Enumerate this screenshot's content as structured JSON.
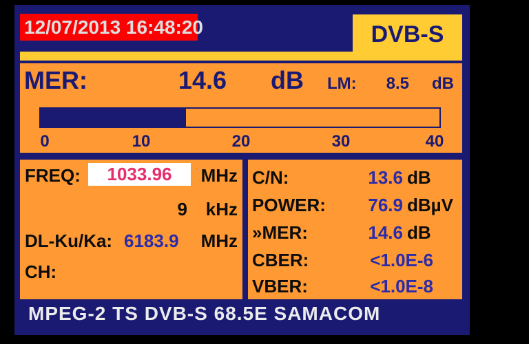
{
  "header": {
    "datetime": "12/07/2013 16:48:20",
    "mode": "DVB-S"
  },
  "mer_panel": {
    "label": "MER:",
    "value": "14.6",
    "unit": "dB",
    "lm_label": "LM:",
    "lm_value": "8.5",
    "lm_unit": "dB",
    "bar": {
      "min": 0,
      "max": 40,
      "value": 14.6,
      "ticks": [
        "0",
        "10",
        "20",
        "30",
        "40"
      ]
    }
  },
  "tuning_panel": {
    "freq_label": "FREQ:",
    "freq_value": "1033.96",
    "freq_unit": "MHz",
    "step_value": "9",
    "step_unit": "kHz",
    "dl_label": "DL-Ku/Ka:",
    "dl_value": "6183.9",
    "dl_unit": "MHz",
    "ch_label": "CH:"
  },
  "measurements": {
    "rows": [
      {
        "label": "C/N:",
        "value": "13.6",
        "unit": "dB"
      },
      {
        "label": "POWER:",
        "value": "76.9",
        "unit": "dBµV"
      },
      {
        "label": "»MER:",
        "value": "14.6",
        "unit": "dB"
      },
      {
        "label": "CBER:",
        "value": "<1.0E-6",
        "unit": ""
      },
      {
        "label": "VBER:",
        "value": "<1.0E-8",
        "unit": ""
      }
    ]
  },
  "footer": {
    "text": "MPEG-2 TS DVB-S 68.5E SAMACOM"
  },
  "colors": {
    "background_navy": "#1a1a73",
    "panel_orange": "#ff9933",
    "accent_yellow": "#ffcc33",
    "date_red": "#fa0202",
    "freq_pink": "#e62e6e",
    "value_blue": "#2b2baa",
    "label_black": "#0d0d0d",
    "text_white": "#ececec"
  }
}
